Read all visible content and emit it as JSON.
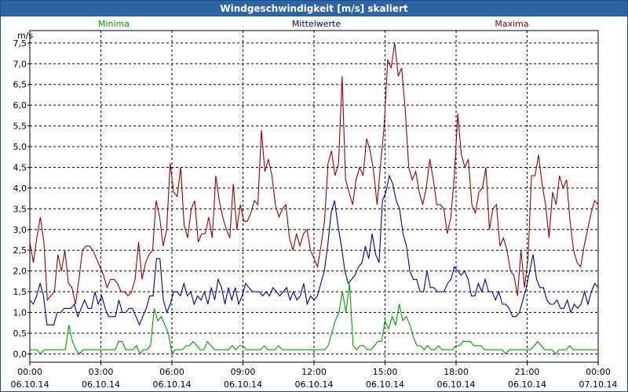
{
  "window": {
    "title": "Windgeschwindigkeit [m/s] skaliert"
  },
  "chart_data": {
    "type": "line",
    "title": "Windgeschwindigkeit [m/s] skaliert",
    "ylabel": "m/s",
    "ylim": [
      -0.2,
      7.8
    ],
    "yticks": [
      "0,0",
      "0,5",
      "1,0",
      "1,5",
      "2,0",
      "2,5",
      "3,0",
      "3,5",
      "4,0",
      "4,5",
      "5,0",
      "5,5",
      "6,0",
      "6,5",
      "7,0",
      "7,5"
    ],
    "xticks": [
      {
        "time": "00:00",
        "date": "06.10.14"
      },
      {
        "time": "03:00",
        "date": "06.10.14"
      },
      {
        "time": "06:00",
        "date": "06.10.14"
      },
      {
        "time": "09:00",
        "date": "06.10.14"
      },
      {
        "time": "12:00",
        "date": "06.10.14"
      },
      {
        "time": "15:00",
        "date": "06.10.14"
      },
      {
        "time": "18:00",
        "date": "06.10.14"
      },
      {
        "time": "21:00",
        "date": "06.10.14"
      },
      {
        "time": "00:00",
        "date": "07.10.14"
      }
    ],
    "x_start_hours": 0,
    "x_step_hours": 0.1667,
    "legend": [
      "Minima",
      "Mittelwerte",
      "Maxima"
    ],
    "series": [
      {
        "name": "Minima",
        "color": "#00a000",
        "values": [
          0.1,
          0.1,
          0.1,
          0.0,
          0.1,
          0.1,
          0.1,
          0.1,
          0.1,
          0.1,
          0.1,
          0.7,
          0.3,
          0.1,
          0.0,
          0.1,
          0.1,
          0.1,
          0.1,
          0.1,
          0.1,
          0.1,
          0.1,
          0.1,
          0.1,
          0.3,
          0.3,
          0.1,
          0.1,
          0.1,
          0.2,
          0.0,
          0.1,
          0.1,
          0.2,
          1.1,
          0.8,
          0.9,
          0.7,
          0.5,
          0.0,
          0.1,
          0.1,
          0.1,
          0.2,
          0.2,
          0.3,
          0.2,
          0.1,
          0.1,
          0.3,
          0.2,
          0.1,
          0.1,
          0.1,
          0.1,
          0.1,
          0.2,
          0.1,
          0.2,
          0.2,
          0.1,
          0.1,
          0.1,
          0.1,
          0.1,
          0.2,
          0.1,
          0.1,
          0.1,
          0.2,
          0.1,
          0.1,
          0.1,
          0.1,
          0.1,
          0.1,
          0.1,
          0.1,
          0.1,
          0.1,
          0.1,
          0.1,
          0.1,
          0.2,
          0.5,
          0.8,
          1.0,
          1.5,
          1.0,
          1.7,
          0.2,
          0.1,
          0.2,
          0.2,
          0.1,
          0.1,
          0.2,
          0.3,
          0.3,
          0.8,
          0.6,
          0.9,
          0.7,
          1.2,
          0.8,
          0.9,
          0.7,
          0.4,
          0.2,
          0.2,
          0.1,
          0.2,
          0.1,
          0.1,
          0.2,
          0.1,
          0.1,
          0.1,
          0.1,
          0.2,
          0.2,
          0.3,
          0.3,
          0.3,
          0.2,
          0.2,
          0.2,
          0.1,
          0.1,
          0.1,
          0.1,
          0.1,
          0.1,
          0.0,
          0.1,
          0.1,
          0.1,
          0.1,
          0.1,
          0.1,
          0.1,
          0.2,
          0.3,
          0.2,
          0.1,
          0.1,
          0.1,
          0.0,
          0.1,
          0.1,
          0.1,
          0.2,
          0.1,
          0.1,
          0.1,
          0.1,
          0.1,
          0.1,
          0.1,
          0.1
        ]
      },
      {
        "name": "Mittelwerte",
        "color": "#0000a0",
        "values": [
          1.3,
          1.2,
          1.4,
          1.7,
          1.4,
          0.7,
          0.7,
          0.7,
          1.0,
          1.0,
          1.1,
          1.1,
          1.1,
          1.2,
          0.9,
          1.1,
          1.3,
          1.1,
          1.1,
          1.5,
          1.2,
          1.4,
          1.1,
          0.9,
          0.9,
          0.9,
          1.3,
          1.0,
          1.0,
          1.1,
          1.1,
          0.9,
          0.7,
          0.9,
          1.1,
          1.4,
          1.4,
          2.3,
          2.3,
          1.3,
          1.0,
          1.2,
          1.5,
          1.5,
          1.4,
          1.7,
          1.4,
          1.5,
          1.2,
          1.4,
          1.3,
          1.5,
          1.2,
          1.6,
          1.3,
          1.8,
          1.6,
          1.2,
          1.6,
          1.3,
          1.6,
          1.2,
          1.4,
          1.7,
          1.6,
          1.5,
          1.5,
          1.5,
          1.4,
          1.5,
          1.4,
          1.6,
          1.5,
          1.4,
          1.5,
          1.6,
          1.3,
          1.5,
          1.3,
          1.4,
          1.7,
          1.2,
          1.4,
          1.3,
          1.4,
          1.7,
          2.0,
          2.6,
          3.4,
          3.7,
          3.1,
          2.6,
          2.0,
          1.7,
          1.8,
          1.9,
          2.1,
          2.2,
          2.6,
          2.3,
          2.9,
          2.4,
          2.2,
          3.7,
          3.9,
          4.3,
          4.1,
          3.7,
          3.5,
          2.9,
          2.6,
          2.0,
          1.8,
          1.8,
          1.5,
          1.5,
          2.0,
          1.6,
          1.6,
          1.5,
          1.5,
          1.5,
          1.7,
          1.8,
          2.1,
          2.0,
          1.9,
          2.0,
          1.8,
          1.4,
          1.4,
          1.7,
          1.5,
          1.8,
          1.5,
          1.5,
          1.3,
          1.5,
          1.2,
          1.2,
          1.1,
          0.9,
          0.9,
          1.0,
          1.3,
          1.6,
          2.0,
          2.4,
          1.8,
          1.6,
          1.6,
          1.3,
          1.2,
          1.2,
          1.3,
          1.1,
          1.1,
          1.3,
          1.0,
          1.2,
          1.1,
          1.2,
          1.5,
          1.2,
          1.5,
          1.7,
          1.6
        ]
      },
      {
        "name": "Maxima",
        "color": "#a00000",
        "values": [
          2.7,
          2.2,
          2.8,
          3.3,
          2.7,
          1.3,
          1.4,
          1.5,
          2.4,
          2.0,
          2.5,
          1.7,
          1.6,
          1.2,
          1.8,
          2.5,
          2.6,
          2.6,
          2.5,
          2.3,
          2.1,
          1.9,
          1.6,
          1.8,
          1.8,
          1.7,
          1.5,
          1.5,
          1.4,
          1.5,
          1.8,
          2.7,
          1.8,
          2.2,
          2.4,
          2.5,
          3.7,
          3.3,
          2.6,
          3.0,
          4.6,
          3.9,
          3.8,
          4.5,
          3.1,
          2.8,
          3.5,
          3.7,
          2.7,
          2.9,
          2.9,
          3.3,
          2.8,
          4.3,
          3.7,
          3.3,
          3.0,
          2.8,
          4.1,
          3.0,
          3.6,
          3.2,
          3.2,
          3.4,
          3.7,
          3.6,
          5.4,
          4.4,
          4.7,
          4.3,
          3.6,
          3.3,
          3.5,
          3.6,
          2.8,
          2.5,
          2.9,
          2.6,
          2.9,
          3.0,
          2.5,
          2.3,
          2.1,
          2.6,
          3.2,
          4.6,
          4.9,
          4.3,
          4.6,
          6.7,
          4.2,
          3.9,
          3.6,
          4.2,
          4.5,
          4.3,
          5.2,
          4.9,
          4.4,
          3.6,
          4.6,
          5.5,
          7.1,
          6.9,
          7.5,
          6.7,
          6.9,
          5.9,
          4.5,
          4.2,
          4.4,
          3.9,
          3.6,
          4.0,
          4.7,
          4.2,
          3.6,
          3.6,
          3.5,
          2.9,
          3.3,
          4.3,
          5.8,
          4.8,
          4.5,
          4.7,
          3.6,
          3.4,
          3.9,
          4.0,
          4.5,
          3.0,
          3.5,
          3.6,
          2.6,
          2.8,
          2.5,
          2.0,
          1.9,
          1.4,
          2.5,
          1.6,
          2.3,
          4.3,
          4.3,
          4.8,
          4.1,
          3.6,
          2.8,
          3.9,
          3.6,
          4.3,
          4.0,
          4.2,
          3.2,
          2.5,
          2.2,
          2.1,
          2.6,
          3.0,
          3.4,
          3.7,
          3.6
        ]
      }
    ]
  }
}
